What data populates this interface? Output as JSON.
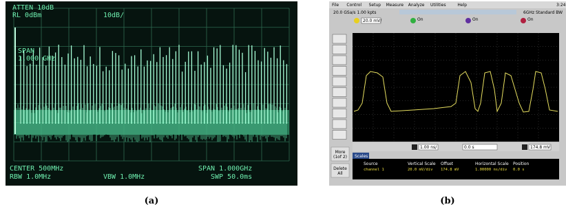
{
  "panel_a": {
    "caption": "(a)",
    "top_left": [
      "ATTEN 10dB",
      "RL 0dBm"
    ],
    "scale": "10dB/",
    "span_overlay": [
      "SPAN",
      "1.000 GHz"
    ],
    "bottom_left": [
      "CENTER 500MHz",
      "RBW 1.0MHz"
    ],
    "bottom_mid": "VBW 1.0MHz",
    "bottom_right": [
      "SPAN 1.000GHz",
      "SWP 50.0ms"
    ]
  },
  "panel_b": {
    "caption": "(b)",
    "menu": [
      "File",
      "Control",
      "Setup",
      "Measure",
      "Analyze",
      "Utilities",
      "Help"
    ],
    "clock": "3:24",
    "acq": "20.0 GSa/s  1.00 kpts",
    "bw": "6GHz Standard BW",
    "ch_scale": "20.0 mV/",
    "on_labels": [
      "On",
      "On",
      "On"
    ],
    "side_buttons": [
      [
        "More",
        "(1of 2)"
      ],
      [
        "Delete",
        "All"
      ]
    ],
    "time_scale": "1.00 ns/",
    "delay": "0.0 s",
    "trigger": "174.8 mV",
    "tab": "Scales",
    "table": {
      "headers": [
        "Source",
        "Vertical Scale",
        "Offset",
        "Horizontal Scale",
        "Position"
      ],
      "row": [
        "channel 1",
        "20.0 mV/div",
        "174.8 mV",
        "1.00000 ns/div",
        "0.0 s"
      ]
    }
  }
}
